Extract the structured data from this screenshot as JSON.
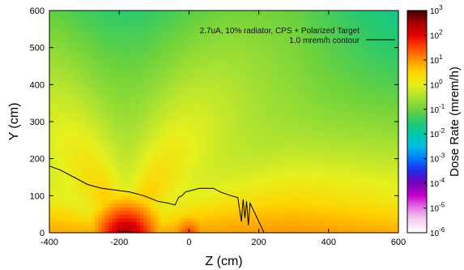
{
  "chart_data": {
    "type": "heatmap",
    "title": "",
    "xlabel": "Z (cm)",
    "ylabel": "Y (cm)",
    "xlim": [
      -400,
      600
    ],
    "ylim": [
      0,
      600
    ],
    "x_ticks": [
      "-400",
      "-200",
      "0",
      "200",
      "400",
      "600"
    ],
    "y_ticks": [
      "0",
      "100",
      "200",
      "300",
      "400",
      "500",
      "600"
    ],
    "legend": {
      "placement": "top-right",
      "entries": [
        "2.7uA, 10% radiator, CPS + Polarized Target",
        "1.0 mrem/h contour"
      ]
    },
    "colorbar": {
      "label": "Dose Rate (mrem/h)",
      "scale": "log",
      "range": [
        -6,
        3
      ],
      "ticks": [
        {
          "base": "10",
          "exp": "3"
        },
        {
          "base": "10",
          "exp": "2"
        },
        {
          "base": "10",
          "exp": "1"
        },
        {
          "base": "10",
          "exp": "0"
        },
        {
          "base": "10",
          "exp": "-1"
        },
        {
          "base": "10",
          "exp": "-2"
        },
        {
          "base": "10",
          "exp": "-3"
        },
        {
          "base": "10",
          "exp": "-4"
        },
        {
          "base": "10",
          "exp": "-5"
        },
        {
          "base": "10",
          "exp": "-6"
        }
      ]
    },
    "contour_1mrem": [
      [
        -400,
        180
      ],
      [
        -370,
        170
      ],
      [
        -330,
        150
      ],
      [
        -290,
        130
      ],
      [
        -250,
        120
      ],
      [
        -210,
        115
      ],
      [
        -170,
        110
      ],
      [
        -130,
        100
      ],
      [
        -90,
        85
      ],
      [
        -60,
        80
      ],
      [
        -40,
        75
      ],
      [
        -30,
        95
      ],
      [
        -20,
        100
      ],
      [
        -10,
        110
      ],
      [
        10,
        115
      ],
      [
        30,
        120
      ],
      [
        70,
        120
      ],
      [
        90,
        110
      ],
      [
        120,
        100
      ],
      [
        140,
        95
      ],
      [
        150,
        30
      ],
      [
        155,
        90
      ],
      [
        160,
        40
      ],
      [
        165,
        85
      ],
      [
        170,
        20
      ],
      [
        175,
        80
      ],
      [
        185,
        60
      ],
      [
        200,
        30
      ],
      [
        215,
        0
      ]
    ]
  }
}
